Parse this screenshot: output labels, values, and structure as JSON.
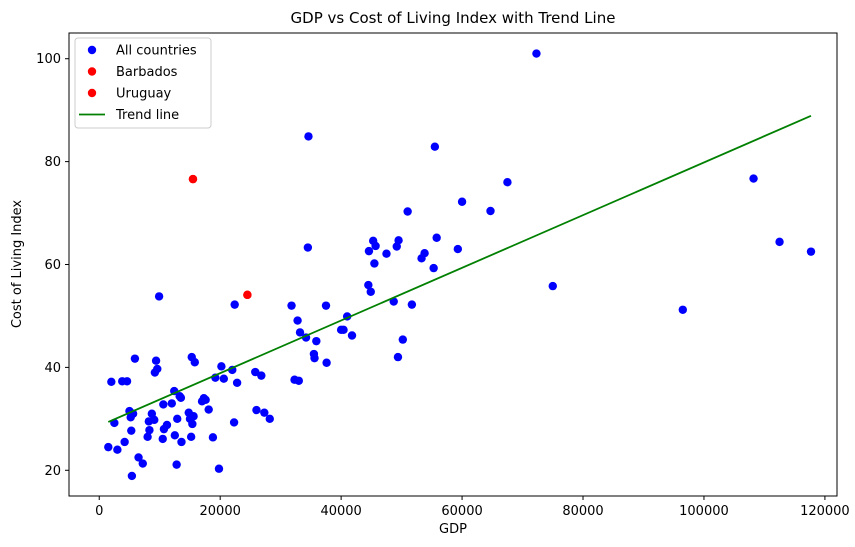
{
  "chart_data": {
    "type": "scatter",
    "title": "GDP vs Cost of Living Index with Trend Line",
    "xlabel": "GDP",
    "ylabel": "Cost of Living Index",
    "xlim": [
      -5000,
      122000
    ],
    "ylim": [
      15,
      105
    ],
    "xticks": [
      0,
      20000,
      40000,
      60000,
      80000,
      100000,
      120000
    ],
    "yticks": [
      20,
      40,
      60,
      80,
      100
    ],
    "grid": false,
    "legend_position": "top-left",
    "colors": {
      "all": "#0000ff",
      "highlight": "#ff0000",
      "trend": "#008000"
    },
    "legend": [
      "All countries",
      "Barbados",
      "Uruguay",
      "Trend line"
    ],
    "series": [
      {
        "name": "All countries",
        "kind": "scatter",
        "color": "#0000ff",
        "points": [
          [
            1500,
            24.5
          ],
          [
            2000,
            37.2
          ],
          [
            2500,
            29.2
          ],
          [
            3000,
            24.0
          ],
          [
            3800,
            37.3
          ],
          [
            4200,
            25.5
          ],
          [
            4600,
            37.3
          ],
          [
            5000,
            31.5
          ],
          [
            5200,
            30.3
          ],
          [
            5300,
            27.7
          ],
          [
            5400,
            18.9
          ],
          [
            5600,
            31.0
          ],
          [
            5900,
            41.7
          ],
          [
            6500,
            22.5
          ],
          [
            7200,
            21.3
          ],
          [
            8000,
            26.5
          ],
          [
            8200,
            29.5
          ],
          [
            8300,
            27.8
          ],
          [
            8700,
            31.0
          ],
          [
            9100,
            29.8
          ],
          [
            9200,
            39.0
          ],
          [
            9400,
            41.3
          ],
          [
            9600,
            39.7
          ],
          [
            9900,
            53.8
          ],
          [
            10500,
            26.1
          ],
          [
            10600,
            32.8
          ],
          [
            10700,
            28.0
          ],
          [
            11200,
            28.8
          ],
          [
            12000,
            33.0
          ],
          [
            12400,
            35.4
          ],
          [
            12500,
            26.8
          ],
          [
            12800,
            21.1
          ],
          [
            12900,
            30.0
          ],
          [
            13300,
            34.4
          ],
          [
            13500,
            34.1
          ],
          [
            13600,
            25.5
          ],
          [
            14800,
            31.2
          ],
          [
            15000,
            30.0
          ],
          [
            15200,
            26.5
          ],
          [
            15300,
            42.0
          ],
          [
            15400,
            29.0
          ],
          [
            15600,
            30.5
          ],
          [
            15800,
            41.0
          ],
          [
            17000,
            33.4
          ],
          [
            17300,
            34.0
          ],
          [
            17600,
            33.7
          ],
          [
            18100,
            31.8
          ],
          [
            18800,
            26.4
          ],
          [
            19200,
            38.0
          ],
          [
            19800,
            20.3
          ],
          [
            20200,
            40.2
          ],
          [
            20600,
            37.8
          ],
          [
            22000,
            39.5
          ],
          [
            22300,
            29.3
          ],
          [
            22400,
            52.2
          ],
          [
            22800,
            37.0
          ],
          [
            25800,
            39.1
          ],
          [
            26000,
            31.7
          ],
          [
            26800,
            38.4
          ],
          [
            27300,
            31.2
          ],
          [
            28200,
            30.0
          ],
          [
            31800,
            52.0
          ],
          [
            32300,
            37.6
          ],
          [
            32800,
            49.1
          ],
          [
            33000,
            37.4
          ],
          [
            33200,
            46.8
          ],
          [
            34200,
            45.8
          ],
          [
            34500,
            63.3
          ],
          [
            34600,
            84.9
          ],
          [
            35500,
            42.6
          ],
          [
            35600,
            41.8
          ],
          [
            35900,
            45.1
          ],
          [
            37500,
            52.0
          ],
          [
            37600,
            40.9
          ],
          [
            40000,
            47.3
          ],
          [
            40400,
            47.3
          ],
          [
            41000,
            49.9
          ],
          [
            41800,
            46.2
          ],
          [
            44500,
            56.0
          ],
          [
            44600,
            62.6
          ],
          [
            44900,
            54.7
          ],
          [
            45300,
            64.6
          ],
          [
            45500,
            60.2
          ],
          [
            45700,
            63.6
          ],
          [
            47500,
            62.1
          ],
          [
            48700,
            52.8
          ],
          [
            49200,
            63.5
          ],
          [
            49400,
            42.0
          ],
          [
            49500,
            64.7
          ],
          [
            50200,
            45.4
          ],
          [
            51000,
            70.3
          ],
          [
            51700,
            52.2
          ],
          [
            53300,
            61.2
          ],
          [
            53800,
            62.2
          ],
          [
            55300,
            59.3
          ],
          [
            55500,
            82.9
          ],
          [
            55800,
            65.2
          ],
          [
            59300,
            63.0
          ],
          [
            60000,
            72.2
          ],
          [
            64700,
            70.4
          ],
          [
            67500,
            76.0
          ],
          [
            72300,
            101.0
          ],
          [
            75000,
            55.8
          ],
          [
            96500,
            51.2
          ],
          [
            108200,
            76.7
          ],
          [
            112500,
            64.4
          ],
          [
            117700,
            62.5
          ]
        ]
      },
      {
        "name": "Barbados",
        "kind": "scatter",
        "color": "#ff0000",
        "points": [
          [
            15500,
            76.6
          ]
        ]
      },
      {
        "name": "Uruguay",
        "kind": "scatter",
        "color": "#ff0000",
        "points": [
          [
            24500,
            54.1
          ]
        ]
      },
      {
        "name": "Trend line",
        "kind": "line",
        "color": "#008000",
        "points": [
          [
            1500,
            29.4
          ],
          [
            117700,
            88.9
          ]
        ]
      }
    ]
  }
}
